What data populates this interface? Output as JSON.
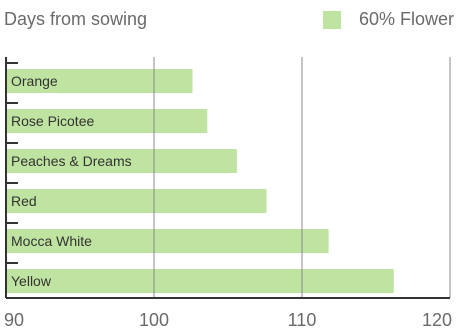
{
  "chart_data": {
    "type": "bar",
    "orientation": "horizontal",
    "ylabel": "Days from sowing",
    "categories": [
      "Orange",
      "Rose Picotee",
      "Peaches & Dreams",
      "Red",
      "Mocca White",
      "Yellow"
    ],
    "series": [
      {
        "name": "60% Flower",
        "values": [
          102.6,
          103.6,
          105.6,
          107.6,
          111.8,
          116.2
        ]
      }
    ],
    "xlim": [
      90,
      120
    ],
    "xticks": [
      "90",
      "100",
      "110",
      "120"
    ],
    "grid": true,
    "legend_position": "top-right",
    "colors": {
      "bar": "#bfe3a0",
      "grid": "#8a8a8a",
      "axis": "#333333",
      "text": "#555555"
    }
  }
}
